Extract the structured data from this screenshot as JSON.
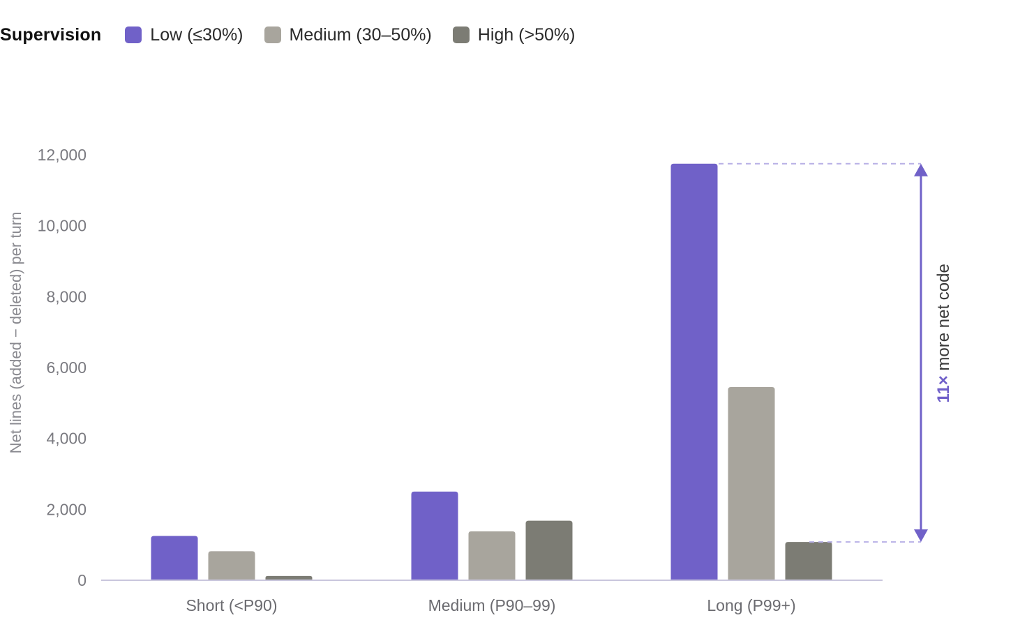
{
  "legend": {
    "title": "Supervision",
    "items": [
      {
        "label": "Low (≤30%)",
        "color": "#7061c8"
      },
      {
        "label": "Medium (30–50%)",
        "color": "#a8a59d"
      },
      {
        "label": "High (>50%)",
        "color": "#7c7c74"
      }
    ]
  },
  "chart_data": {
    "type": "bar",
    "categories": [
      "Short (<P90)",
      "Medium (P90–99)",
      "Long (P99+)"
    ],
    "series": [
      {
        "name": "Low (≤30%)",
        "values": [
          1250,
          2500,
          11750
        ],
        "color": "#7061c8"
      },
      {
        "name": "Medium (30–50%)",
        "values": [
          820,
          1380,
          5450
        ],
        "color": "#a8a59d"
      },
      {
        "name": "High (>50%)",
        "values": [
          120,
          1680,
          1080
        ],
        "color": "#7c7c74"
      }
    ],
    "xlabel": "",
    "ylabel": "Net lines (added − deleted) per turn",
    "ylim": [
      0,
      12000
    ],
    "yticks": [
      0,
      2000,
      4000,
      6000,
      8000,
      10000,
      12000
    ],
    "ytick_labels": [
      "0",
      "2,000",
      "4,000",
      "6,000",
      "8,000",
      "10,000",
      "12,000"
    ],
    "grid": false,
    "legend_position": "top-left",
    "annotation": {
      "bold": "11×",
      "text": " more net code",
      "from_value": 1080,
      "to_value": 11750
    }
  }
}
